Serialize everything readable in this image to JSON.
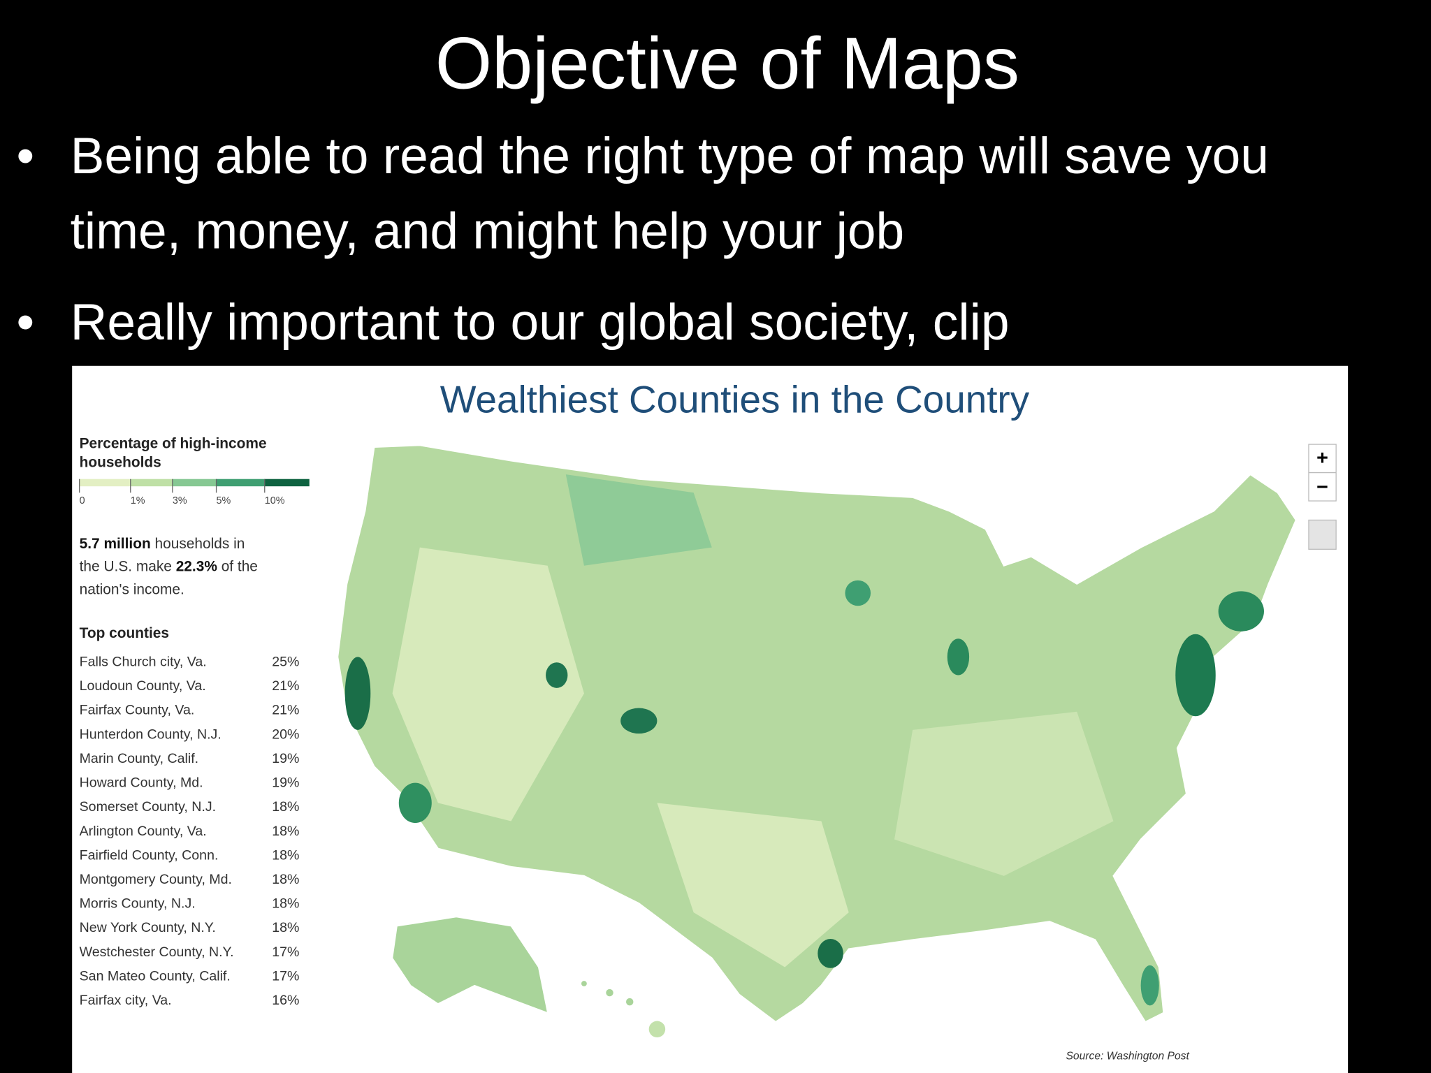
{
  "slide": {
    "title": "Objective of Maps",
    "bullets": [
      "Being able to read the right type of map will save you time, money, and might help your job",
      "Really important to our global society, clip"
    ]
  },
  "graphic": {
    "title": "Wealthiest Counties in the Country",
    "legend_title": [
      "Percentage of high-income",
      "households"
    ],
    "legend_ticks": [
      "0",
      "1%",
      "3%",
      "5%",
      "10%"
    ],
    "stat": [
      {
        "text": "5.7 million",
        "bold": true
      },
      {
        "text": " households in"
      },
      {
        "text": "the U.S. make ",
        "newline": true
      },
      {
        "text": "22.3%",
        "bold": true
      },
      {
        "text": " of the"
      },
      {
        "text": "nation's income.",
        "newline": true
      }
    ],
    "top_heading": "Top counties",
    "top_counties": [
      [
        "Falls Church city, Va.",
        "25%"
      ],
      [
        "Loudoun County, Va.",
        "21%"
      ],
      [
        "Fairfax County, Va.",
        "21%"
      ],
      [
        "Hunterdon County, N.J.",
        "20%"
      ],
      [
        "Marin County, Calif.",
        "19%"
      ],
      [
        "Howard County, Md.",
        "19%"
      ],
      [
        "Somerset County, N.J.",
        "18%"
      ],
      [
        "Arlington County, Va.",
        "18%"
      ],
      [
        "Fairfield County, Conn.",
        "18%"
      ],
      [
        "Montgomery County, Md.",
        "18%"
      ],
      [
        "Morris County, N.J.",
        "18%"
      ],
      [
        "New York County, N.Y.",
        "18%"
      ],
      [
        "Westchester County, N.Y.",
        "17%"
      ],
      [
        "San Mateo County, Calif.",
        "17%"
      ],
      [
        "Fairfax city, Va.",
        "16%"
      ]
    ],
    "map_controls": [
      "+",
      "−"
    ],
    "source": "Source: Washington Post"
  }
}
